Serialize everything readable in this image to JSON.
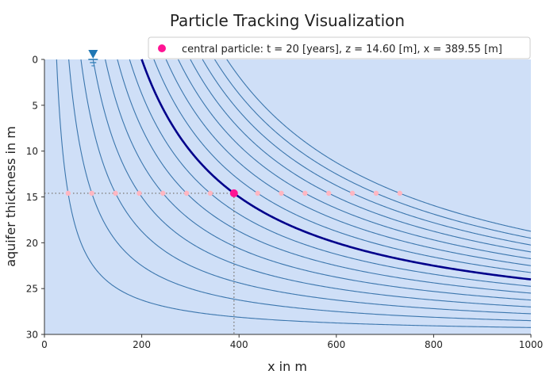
{
  "chart_data": {
    "type": "line",
    "title": "Particle Tracking Visualization",
    "xlabel": "x in m",
    "ylabel": "aquifer thickness in m",
    "xlim": [
      0,
      1000
    ],
    "ylim": [
      30,
      0
    ],
    "y_inverted": true,
    "x_ticks": [
      "0",
      "200",
      "400",
      "600",
      "800",
      "1000"
    ],
    "y_ticks": [
      "0",
      "5",
      "10",
      "15",
      "20",
      "25",
      "30"
    ],
    "grid": false,
    "legend_position": "top-right",
    "legend": [
      {
        "label": "central particle: t = 20 [years], z = 14.60 [m], x = 389.55 [m]",
        "color": "#ff1493"
      }
    ],
    "aquifer_thickness": 30,
    "streamline_start_x": [
      25,
      50,
      75,
      100,
      125,
      150,
      175,
      200,
      225,
      250,
      275,
      300,
      325,
      350,
      375
    ],
    "central_streamline_start_x": 200,
    "particle_depth": 14.6,
    "particles_x": [
      48.7,
      97.4,
      146.1,
      194.8,
      243.5,
      292.2,
      340.9,
      389.55,
      438.3,
      487.0,
      535.7,
      584.4,
      633.1,
      681.8,
      730.5
    ],
    "central_particle": {
      "t": 20,
      "z": 14.6,
      "x": 389.55
    },
    "water_table_marker_x": 100,
    "colors": {
      "background": "#cfdff7",
      "streamline": "#3b76ad",
      "central_streamline": "#00008b",
      "particle": "#ffb6c1",
      "central_particle": "#ff1493",
      "guide": "#888888",
      "marker": "#1f77b4"
    }
  }
}
